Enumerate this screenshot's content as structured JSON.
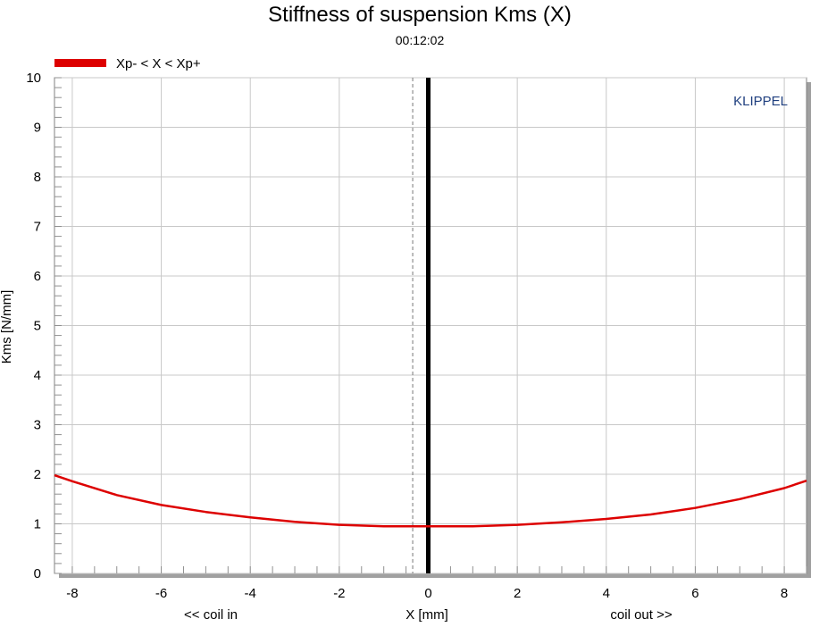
{
  "chart_data": {
    "type": "line",
    "title": "Stiffness of suspension Kms (X)",
    "subtitle": "00:12:02",
    "xlabel": "X [mm]",
    "xlabel_left": "<< coil in",
    "xlabel_right": "coil out >>",
    "ylabel": "Kms [N/mm]",
    "watermark": "KLIPPEL",
    "xlim": [
      -8.4,
      8.5
    ],
    "ylim": [
      0,
      10
    ],
    "x_ticks": [
      -8,
      -6,
      -4,
      -2,
      0,
      2,
      4,
      6,
      8
    ],
    "y_ticks": [
      0,
      1,
      2,
      3,
      4,
      5,
      6,
      7,
      8,
      9,
      10
    ],
    "grid": true,
    "legend_position": "top-left",
    "markers": [
      {
        "x": 0,
        "style": "solid-thick"
      },
      {
        "x": -0.35,
        "style": "dashed"
      }
    ],
    "series": [
      {
        "name": "Xp- < X < Xp+",
        "color": "#dd0000",
        "x": [
          -8.4,
          -8,
          -7,
          -6,
          -5,
          -4,
          -3,
          -2,
          -1,
          0,
          1,
          2,
          3,
          4,
          5,
          6,
          7,
          8,
          8.5
        ],
        "y": [
          1.98,
          1.86,
          1.58,
          1.38,
          1.24,
          1.13,
          1.04,
          0.98,
          0.95,
          0.95,
          0.95,
          0.98,
          1.03,
          1.1,
          1.19,
          1.32,
          1.5,
          1.72,
          1.87
        ]
      }
    ]
  },
  "colors": {
    "series": "#dd0000",
    "grid": "#c8c8c8",
    "brand": "#1f3f7f",
    "marker": "#000000"
  }
}
